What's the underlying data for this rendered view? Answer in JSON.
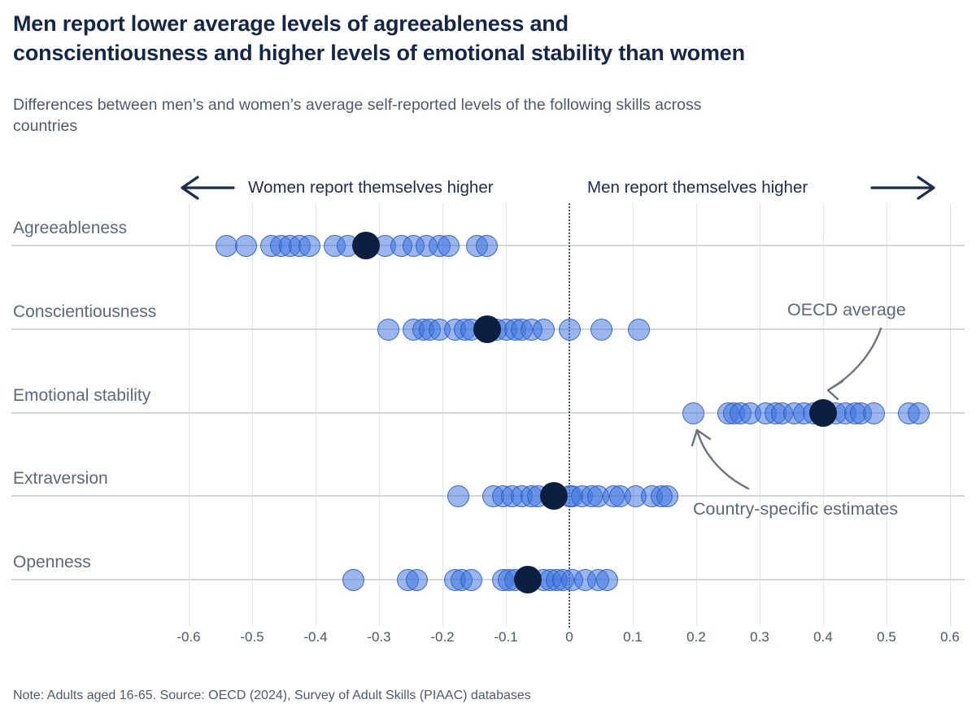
{
  "header": {
    "title": "Men report lower average levels of agreeableness and\nconscientiousness and higher levels of emotional stability than women",
    "subtitle": "Differences between men’s and women’s average self-reported levels of the following skills across\ncountries"
  },
  "directions": {
    "left": "Women report themselves higher",
    "right": "Men report themselves higher"
  },
  "chart_data": {
    "type": "scatter",
    "subtype": "horizontal-dot-strip",
    "xlim": [
      -0.65,
      0.65
    ],
    "x_ticks": [
      -0.6,
      -0.5,
      -0.4,
      -0.3,
      -0.2,
      -0.1,
      0,
      0.1,
      0.2,
      0.3,
      0.4,
      0.5,
      0.6
    ],
    "zero_reference_line": true,
    "grid": "vertical",
    "categories": [
      "Agreeableness",
      "Conscientiousness",
      "Emotional stability",
      "Extraversion",
      "Openness"
    ],
    "series": [
      {
        "category": "Agreeableness",
        "oecd_average": -0.32,
        "country_values": [
          -0.54,
          -0.51,
          -0.47,
          -0.455,
          -0.44,
          -0.425,
          -0.41,
          -0.37,
          -0.35,
          -0.29,
          -0.265,
          -0.245,
          -0.225,
          -0.205,
          -0.19,
          -0.145,
          -0.13
        ]
      },
      {
        "category": "Conscientiousness",
        "oecd_average": -0.13,
        "country_values": [
          -0.285,
          -0.245,
          -0.23,
          -0.22,
          -0.205,
          -0.18,
          -0.165,
          -0.155,
          -0.115,
          -0.1,
          -0.085,
          -0.075,
          -0.06,
          -0.04,
          0.0,
          0.05,
          0.11
        ]
      },
      {
        "category": "Emotional stability",
        "oecd_average": 0.4,
        "country_values": [
          0.195,
          0.25,
          0.26,
          0.27,
          0.285,
          0.31,
          0.325,
          0.335,
          0.355,
          0.37,
          0.385,
          0.42,
          0.435,
          0.45,
          0.46,
          0.48,
          0.535,
          0.55
        ]
      },
      {
        "category": "Extraversion",
        "oecd_average": -0.025,
        "country_values": [
          -0.175,
          -0.12,
          -0.105,
          -0.09,
          -0.075,
          -0.06,
          -0.05,
          0.0,
          0.005,
          0.02,
          0.035,
          0.045,
          0.07,
          0.08,
          0.105,
          0.13,
          0.145,
          0.155
        ]
      },
      {
        "category": "Openness",
        "oecd_average": -0.065,
        "country_values": [
          -0.34,
          -0.255,
          -0.24,
          -0.18,
          -0.17,
          -0.155,
          -0.105,
          -0.095,
          -0.085,
          -0.04,
          -0.03,
          -0.02,
          -0.01,
          0.005,
          0.025,
          0.045,
          0.06
        ]
      }
    ],
    "legend_annotations": {
      "oecd_average_label": "OECD average",
      "country_estimates_label": "Country-specific estimates"
    }
  },
  "footer": {
    "note": "Note: Adults aged 16-65. Source: OECD (2024), Survey of Adult Skills (PIAAC) databases"
  },
  "colors": {
    "title": "#152647",
    "body_gray": "#5d6877",
    "country_dot_fill": "rgba(62,115,220,0.52)",
    "country_dot_border": "rgba(38,90,200,0.85)",
    "oecd_dot": "#0c1f40",
    "direction_text": "#1e2c4d",
    "gridline": "#e4e7ea",
    "row_line": "#d3d8de"
  }
}
